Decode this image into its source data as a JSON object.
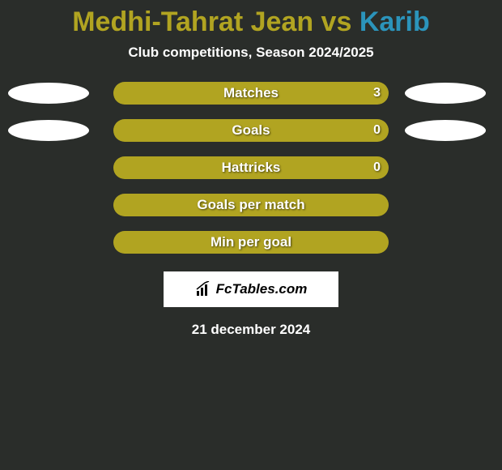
{
  "title": {
    "left": "Medhi-Tahrat Jean",
    "vs": " vs ",
    "right": "Karib",
    "left_color": "#b1a421",
    "right_color": "#2b94bb"
  },
  "subtitle": "Club competitions, Season 2024/2025",
  "bars": [
    {
      "label": "Matches",
      "value": "3",
      "show_value": true,
      "show_ellipses": true
    },
    {
      "label": "Goals",
      "value": "0",
      "show_value": true,
      "show_ellipses": true
    },
    {
      "label": "Hattricks",
      "value": "0",
      "show_value": true,
      "show_ellipses": false
    },
    {
      "label": "Goals per match",
      "value": "",
      "show_value": false,
      "show_ellipses": false
    },
    {
      "label": "Min per goal",
      "value": "",
      "show_value": false,
      "show_ellipses": false
    }
  ],
  "bar_style": {
    "track_color": "#b1a421",
    "track_width": 340,
    "track_height": 28,
    "track_radius": 14,
    "label_color": "#ffffff",
    "label_fontsize": 17
  },
  "ellipse_style": {
    "width": 100,
    "height": 26,
    "color": "#ffffff"
  },
  "logo": {
    "text": "FcTables.com",
    "icon_name": "bar-chart-icon"
  },
  "date": "21 december 2024",
  "background_color": "#2a2d2a"
}
